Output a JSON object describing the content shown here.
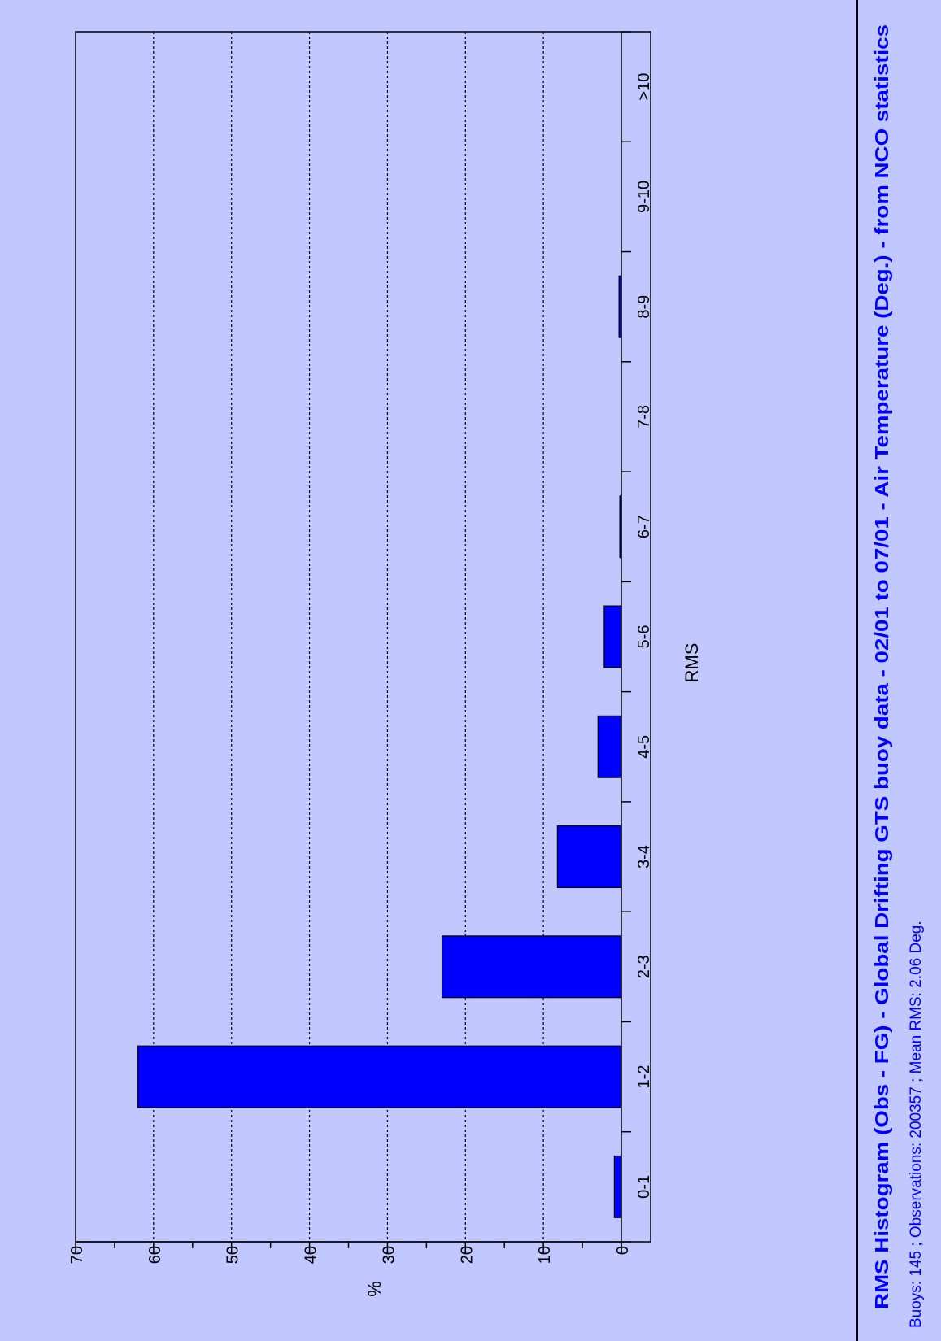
{
  "colors": {
    "background": "#c0c8ff",
    "bar": "#0000ff",
    "title": "#0000ff",
    "axis": "#000000",
    "grid": "#000000"
  },
  "chart_data": {
    "type": "bar",
    "title": "RMS Histogram (Obs - FG) - Global Drifting GTS buoy data - 02/01 to 07/01 - Air Temperature (Deg.) - from NCO statistics",
    "subtitle": "Buoys: 145 ; Observations: 200357 ; Mean RMS: 2.06 Deg.",
    "xlabel": "RMS",
    "ylabel": "%",
    "categories": [
      "0-1",
      "1-2",
      "2-3",
      "3-4",
      "4-5",
      "5-6",
      "6-7",
      "7-8",
      "8-9",
      "9-10",
      ">10"
    ],
    "values": [
      0.9,
      62.0,
      23.0,
      8.2,
      3.0,
      2.2,
      0.2,
      0.0,
      0.3,
      0.0,
      0.0
    ],
    "ylim": [
      0,
      70
    ],
    "yticks": [
      0,
      10,
      20,
      30,
      40,
      50,
      60,
      70
    ],
    "grid": true,
    "orientation": "rotated-90-clockwise"
  }
}
